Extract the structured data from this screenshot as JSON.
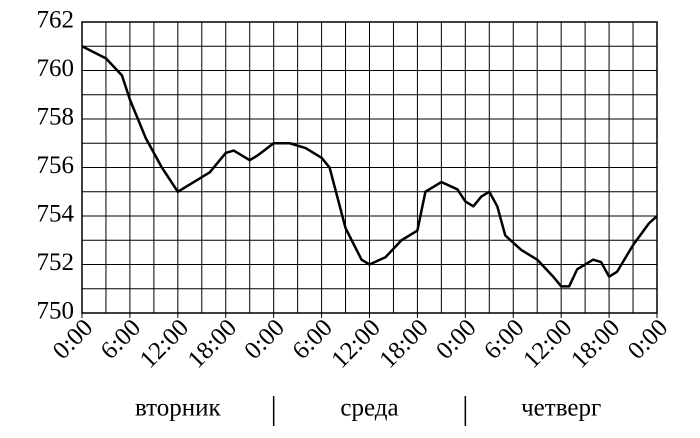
{
  "chart_data": {
    "type": "line",
    "x": [
      0,
      3,
      5,
      6,
      8,
      10,
      12,
      14,
      16,
      18,
      19,
      21,
      22,
      24,
      26,
      28,
      30,
      31,
      33,
      35,
      36,
      38,
      40,
      42,
      43,
      45,
      47,
      48,
      49,
      50,
      51,
      52,
      53,
      55,
      57,
      59,
      60,
      61,
      62,
      64,
      65,
      66,
      67,
      69,
      71,
      72
    ],
    "series": [
      {
        "color": "#000000",
        "values": [
          761,
          760.5,
          759.8,
          758.8,
          757.2,
          756,
          755,
          755.4,
          755.8,
          756.6,
          756.7,
          756.3,
          756.5,
          757,
          757,
          756.8,
          756.4,
          756,
          753.5,
          752.2,
          752,
          752.3,
          753,
          753.4,
          755,
          755.4,
          755.1,
          754.6,
          754.4,
          754.8,
          755,
          754.4,
          753.2,
          752.6,
          752.2,
          751.5,
          751.1,
          751.1,
          751.8,
          752.2,
          752.1,
          751.5,
          751.7,
          752.8,
          753.7,
          754
        ]
      }
    ],
    "xlim": [
      0,
      72
    ],
    "xticks": [
      {
        "value": 0,
        "label": "0:00"
      },
      {
        "value": 6,
        "label": "6:00"
      },
      {
        "value": 12,
        "label": "12:00"
      },
      {
        "value": 18,
        "label": "18:00"
      },
      {
        "value": 24,
        "label": "0:00"
      },
      {
        "value": 30,
        "label": "6:00"
      },
      {
        "value": 36,
        "label": "12:00"
      },
      {
        "value": 42,
        "label": "18:00"
      },
      {
        "value": 48,
        "label": "0:00"
      },
      {
        "value": 54,
        "label": "6:00"
      },
      {
        "value": 60,
        "label": "12:00"
      },
      {
        "value": 66,
        "label": "18:00"
      },
      {
        "value": 72,
        "label": "0:00"
      }
    ],
    "xgrid": [
      0,
      3,
      6,
      9,
      12,
      15,
      18,
      21,
      24,
      27,
      30,
      33,
      36,
      39,
      42,
      45,
      48,
      51,
      54,
      57,
      60,
      63,
      66,
      69,
      72
    ],
    "ylim": [
      750,
      762
    ],
    "yticks": [
      750,
      752,
      754,
      756,
      758,
      760,
      762
    ],
    "ygrid": [
      750,
      751,
      752,
      753,
      754,
      755,
      756,
      757,
      758,
      759,
      760,
      761,
      762
    ],
    "days": [
      "вторник",
      "среда",
      "четверг"
    ],
    "grid": true
  }
}
